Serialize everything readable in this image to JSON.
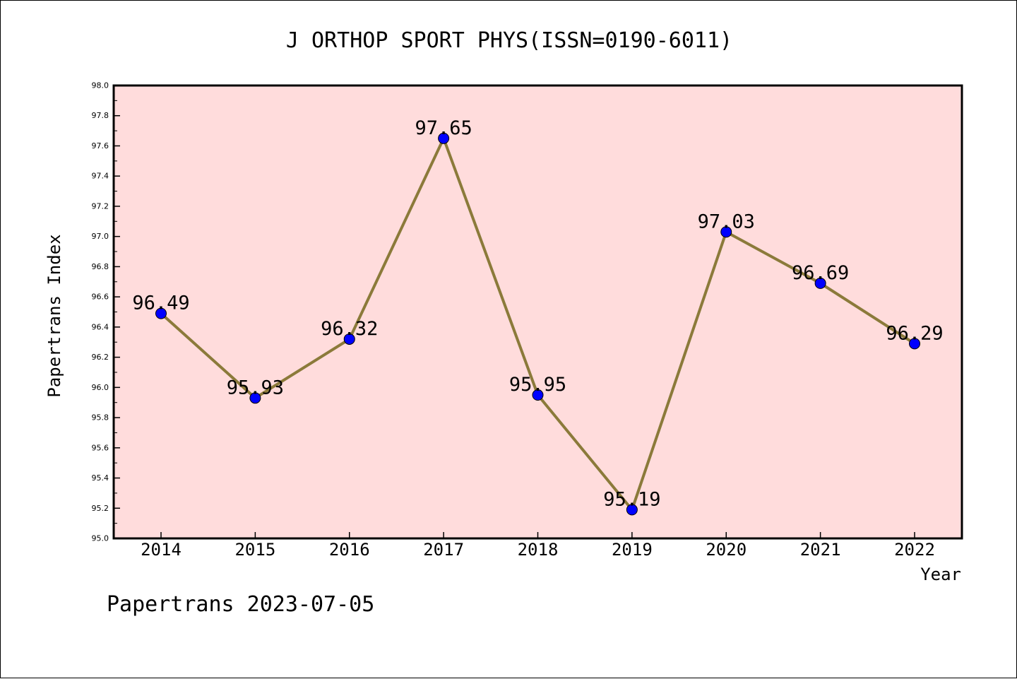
{
  "chart_data": {
    "type": "line",
    "title": "J ORTHOP SPORT PHYS(ISSN=0190-6011)",
    "xlabel": "Year",
    "ylabel": "Papertrans Index",
    "categories": [
      "2014",
      "2015",
      "2016",
      "2017",
      "2018",
      "2019",
      "2020",
      "2021",
      "2022"
    ],
    "series": [
      {
        "values": [
          96.49,
          95.93,
          96.32,
          97.65,
          95.95,
          95.19,
          97.03,
          96.69,
          96.29
        ],
        "labels": [
          "96.49",
          "95.93",
          "96.32",
          "97.65",
          "95.95",
          "95.19",
          "97.03",
          "96.69",
          "96.29"
        ],
        "line_color": "#8b7a3a",
        "marker_color": "#0000ff"
      }
    ],
    "ylim": [
      95.0,
      98.0
    ],
    "yticks": [
      "95.0",
      "95.2",
      "95.4",
      "95.6",
      "95.8",
      "96.0",
      "96.2",
      "96.4",
      "96.6",
      "96.8",
      "97.0",
      "97.2",
      "97.4",
      "97.6",
      "97.8",
      "98.0"
    ],
    "plot_background": "#ffdcdc",
    "grid": false
  },
  "footer": "Papertrans 2023-07-05"
}
